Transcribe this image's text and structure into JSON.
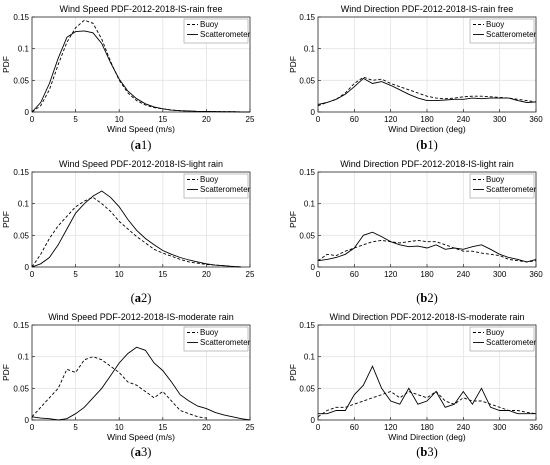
{
  "chart_data": [
    {
      "id": "a1",
      "caption": "(a1)",
      "type": "line",
      "title": "Wind Speed PDF-2012-2018-IS-rain free",
      "xlabel": "Wind Speed (m/s)",
      "ylabel": "PDF",
      "xlim": [
        0,
        25
      ],
      "ylim": [
        0,
        0.15
      ],
      "xticks": [
        0,
        5,
        10,
        15,
        20,
        25
      ],
      "yticks": [
        0,
        0.05,
        0.1,
        0.15
      ],
      "grid": true,
      "legend_position": "top-right",
      "series": [
        {
          "name": "Buoy",
          "style": "dashed",
          "x": [
            0,
            1,
            2,
            3,
            4,
            5,
            6,
            7,
            8,
            9,
            10,
            11,
            12,
            13,
            14,
            15,
            16,
            17,
            18,
            19,
            20,
            21,
            22,
            23,
            24,
            25
          ],
          "y": [
            0,
            0.01,
            0.035,
            0.075,
            0.11,
            0.133,
            0.145,
            0.14,
            0.115,
            0.08,
            0.05,
            0.03,
            0.018,
            0.011,
            0.007,
            0.005,
            0.003,
            0.002,
            0.0015,
            0.001,
            0.001,
            0.0007,
            0.0005,
            0.0004,
            0.0002,
            0
          ]
        },
        {
          "name": "Scatterometer",
          "style": "solid",
          "x": [
            0,
            1,
            2,
            3,
            4,
            5,
            6,
            7,
            8,
            9,
            10,
            11,
            12,
            13,
            14,
            15,
            16,
            17,
            18,
            19,
            20,
            21,
            22,
            23,
            24,
            25
          ],
          "y": [
            0,
            0.015,
            0.045,
            0.085,
            0.118,
            0.127,
            0.128,
            0.125,
            0.108,
            0.078,
            0.052,
            0.033,
            0.021,
            0.013,
            0.008,
            0.005,
            0.003,
            0.002,
            0.0015,
            0.001,
            0.001,
            0.0007,
            0.0005,
            0.0004,
            0.0002,
            0
          ]
        }
      ]
    },
    {
      "id": "b1",
      "caption": "(b1)",
      "type": "line",
      "title": "Wind Direction PDF-2012-2018-IS-rain free",
      "xlabel": "Wind Direction (deg)",
      "ylabel": "PDF",
      "xlim": [
        0,
        360
      ],
      "ylim": [
        0,
        0.15
      ],
      "xticks": [
        0,
        60,
        120,
        180,
        240,
        300,
        360
      ],
      "yticks": [
        0,
        0.05,
        0.1,
        0.15
      ],
      "grid": true,
      "legend_position": "top-right",
      "series": [
        {
          "name": "Buoy",
          "style": "dashed",
          "x": [
            0,
            15,
            30,
            45,
            60,
            75,
            90,
            105,
            120,
            135,
            150,
            165,
            180,
            195,
            210,
            225,
            240,
            255,
            270,
            285,
            300,
            315,
            330,
            345,
            360
          ],
          "y": [
            0.01,
            0.015,
            0.02,
            0.03,
            0.045,
            0.055,
            0.05,
            0.052,
            0.045,
            0.04,
            0.035,
            0.03,
            0.025,
            0.022,
            0.021,
            0.022,
            0.024,
            0.025,
            0.025,
            0.024,
            0.023,
            0.022,
            0.02,
            0.018,
            0.016
          ]
        },
        {
          "name": "Scatterometer",
          "style": "solid",
          "x": [
            0,
            15,
            30,
            45,
            60,
            75,
            90,
            105,
            120,
            135,
            150,
            165,
            180,
            195,
            210,
            225,
            240,
            255,
            270,
            285,
            300,
            315,
            330,
            345,
            360
          ],
          "y": [
            0.012,
            0.015,
            0.02,
            0.028,
            0.04,
            0.053,
            0.045,
            0.048,
            0.042,
            0.035,
            0.028,
            0.022,
            0.018,
            0.018,
            0.019,
            0.02,
            0.02,
            0.022,
            0.021,
            0.022,
            0.022,
            0.022,
            0.018,
            0.015,
            0.016
          ]
        }
      ]
    },
    {
      "id": "a2",
      "caption": "(a2)",
      "type": "line",
      "title": "Wind Speed PDF-2012-2018-IS-light rain",
      "xlabel": "",
      "ylabel": "PDF",
      "xlim": [
        0,
        25
      ],
      "ylim": [
        0,
        0.15
      ],
      "xticks": [
        0,
        5,
        10,
        15,
        20,
        25
      ],
      "yticks": [
        0,
        0.05,
        0.1,
        0.15
      ],
      "grid": true,
      "legend_position": "top-right",
      "series": [
        {
          "name": "Buoy",
          "style": "dashed",
          "x": [
            0,
            1,
            2,
            3,
            4,
            5,
            6,
            7,
            8,
            9,
            10,
            11,
            12,
            13,
            14,
            15,
            16,
            17,
            18,
            19,
            20,
            21,
            22,
            23,
            24
          ],
          "y": [
            0,
            0.02,
            0.045,
            0.065,
            0.08,
            0.095,
            0.104,
            0.11,
            0.1,
            0.088,
            0.072,
            0.06,
            0.048,
            0.038,
            0.028,
            0.022,
            0.017,
            0.012,
            0.008,
            0.006,
            0.004,
            0.003,
            0.002,
            0.001,
            0
          ]
        },
        {
          "name": "Scatterometer",
          "style": "solid",
          "x": [
            0,
            1,
            2,
            3,
            4,
            5,
            6,
            7,
            8,
            9,
            10,
            11,
            12,
            13,
            14,
            15,
            16,
            17,
            18,
            19,
            20,
            21,
            22,
            23,
            24
          ],
          "y": [
            0,
            0.005,
            0.015,
            0.035,
            0.06,
            0.085,
            0.1,
            0.112,
            0.12,
            0.11,
            0.095,
            0.075,
            0.058,
            0.045,
            0.035,
            0.026,
            0.02,
            0.015,
            0.011,
            0.008,
            0.005,
            0.003,
            0.002,
            0.001,
            0
          ]
        }
      ]
    },
    {
      "id": "b2",
      "caption": "(b2)",
      "type": "line",
      "title": "Wind Direction PDF-2012-2018-IS-light rain",
      "xlabel": "",
      "ylabel": "PDF",
      "xlim": [
        0,
        360
      ],
      "ylim": [
        0,
        0.15
      ],
      "xticks": [
        0,
        60,
        120,
        180,
        240,
        300,
        360
      ],
      "yticks": [
        0,
        0.05,
        0.1,
        0.15
      ],
      "grid": true,
      "legend_position": "top-right",
      "series": [
        {
          "name": "Buoy",
          "style": "dashed",
          "x": [
            0,
            15,
            30,
            45,
            60,
            75,
            90,
            105,
            120,
            135,
            150,
            165,
            180,
            195,
            210,
            225,
            240,
            255,
            270,
            285,
            300,
            315,
            330,
            345,
            360
          ],
          "y": [
            0.01,
            0.02,
            0.018,
            0.025,
            0.03,
            0.035,
            0.04,
            0.042,
            0.04,
            0.038,
            0.04,
            0.042,
            0.04,
            0.04,
            0.035,
            0.03,
            0.025,
            0.025,
            0.022,
            0.02,
            0.018,
            0.012,
            0.01,
            0.008,
            0.01
          ]
        },
        {
          "name": "Scatterometer",
          "style": "solid",
          "x": [
            0,
            15,
            30,
            45,
            60,
            75,
            90,
            105,
            120,
            135,
            150,
            165,
            180,
            195,
            210,
            225,
            240,
            255,
            270,
            285,
            300,
            315,
            330,
            345,
            360
          ],
          "y": [
            0.01,
            0.012,
            0.015,
            0.02,
            0.03,
            0.05,
            0.055,
            0.048,
            0.04,
            0.035,
            0.032,
            0.033,
            0.03,
            0.035,
            0.028,
            0.03,
            0.028,
            0.032,
            0.035,
            0.028,
            0.02,
            0.015,
            0.012,
            0.008,
            0.012
          ]
        }
      ]
    },
    {
      "id": "a3",
      "caption": "(a3)",
      "type": "line",
      "title": "Wind Speed PDF-2012-2018-IS-moderate rain",
      "xlabel": "Wind Speed (m/s)",
      "ylabel": "PDF",
      "xlim": [
        0,
        25
      ],
      "ylim": [
        0,
        0.15
      ],
      "xticks": [
        0,
        5,
        10,
        15,
        20,
        25
      ],
      "yticks": [
        0,
        0.05,
        0.1,
        0.15
      ],
      "grid": true,
      "legend_position": "top-right",
      "series": [
        {
          "name": "Buoy",
          "style": "dashed",
          "x": [
            0,
            1,
            2,
            3,
            4,
            5,
            6,
            7,
            8,
            9,
            10,
            11,
            12,
            13,
            14,
            15,
            16,
            17,
            18,
            19,
            20
          ],
          "y": [
            0.005,
            0.02,
            0.035,
            0.05,
            0.08,
            0.075,
            0.095,
            0.1,
            0.095,
            0.085,
            0.075,
            0.06,
            0.055,
            0.045,
            0.035,
            0.045,
            0.03,
            0.015,
            0.01,
            0.005,
            0.003
          ]
        },
        {
          "name": "Scatterometer",
          "style": "solid",
          "x": [
            0,
            1,
            2,
            3,
            4,
            5,
            6,
            7,
            8,
            9,
            10,
            11,
            12,
            13,
            14,
            15,
            16,
            17,
            18,
            19,
            20,
            21,
            22,
            23,
            24,
            25
          ],
          "y": [
            0.005,
            0.003,
            0.002,
            0,
            0.002,
            0.01,
            0.02,
            0.035,
            0.05,
            0.07,
            0.09,
            0.105,
            0.115,
            0.11,
            0.09,
            0.078,
            0.06,
            0.04,
            0.03,
            0.022,
            0.018,
            0.012,
            0.008,
            0.005,
            0.002,
            0
          ]
        }
      ]
    },
    {
      "id": "b3",
      "caption": "(b3)",
      "type": "line",
      "title": "Wind Direction PDF-2012-2018-IS-moderate rain",
      "xlabel": "Wind Direction (deg)",
      "ylabel": "PDF",
      "xlim": [
        0,
        360
      ],
      "ylim": [
        0,
        0.15
      ],
      "xticks": [
        0,
        60,
        120,
        180,
        240,
        300,
        360
      ],
      "yticks": [
        0,
        0.05,
        0.1,
        0.15
      ],
      "grid": true,
      "legend_position": "top-right",
      "series": [
        {
          "name": "Buoy",
          "style": "dashed",
          "x": [
            0,
            15,
            30,
            45,
            60,
            75,
            90,
            105,
            120,
            135,
            150,
            165,
            180,
            195,
            210,
            225,
            240,
            255,
            270,
            285,
            300,
            315,
            330,
            345,
            360
          ],
          "y": [
            0.005,
            0.015,
            0.02,
            0.02,
            0.025,
            0.03,
            0.035,
            0.04,
            0.045,
            0.035,
            0.045,
            0.04,
            0.035,
            0.045,
            0.03,
            0.025,
            0.035,
            0.03,
            0.03,
            0.025,
            0.02,
            0.015,
            0.015,
            0.012,
            0.01
          ]
        },
        {
          "name": "Scatterometer",
          "style": "solid",
          "x": [
            0,
            15,
            30,
            45,
            60,
            75,
            90,
            105,
            120,
            135,
            150,
            165,
            180,
            195,
            210,
            225,
            240,
            255,
            270,
            285,
            300,
            315,
            330,
            345,
            360
          ],
          "y": [
            0.01,
            0.01,
            0.015,
            0.015,
            0.04,
            0.055,
            0.085,
            0.05,
            0.03,
            0.025,
            0.05,
            0.025,
            0.03,
            0.045,
            0.02,
            0.025,
            0.045,
            0.025,
            0.05,
            0.02,
            0.015,
            0.015,
            0.01,
            0.01,
            0.01
          ]
        }
      ]
    }
  ]
}
